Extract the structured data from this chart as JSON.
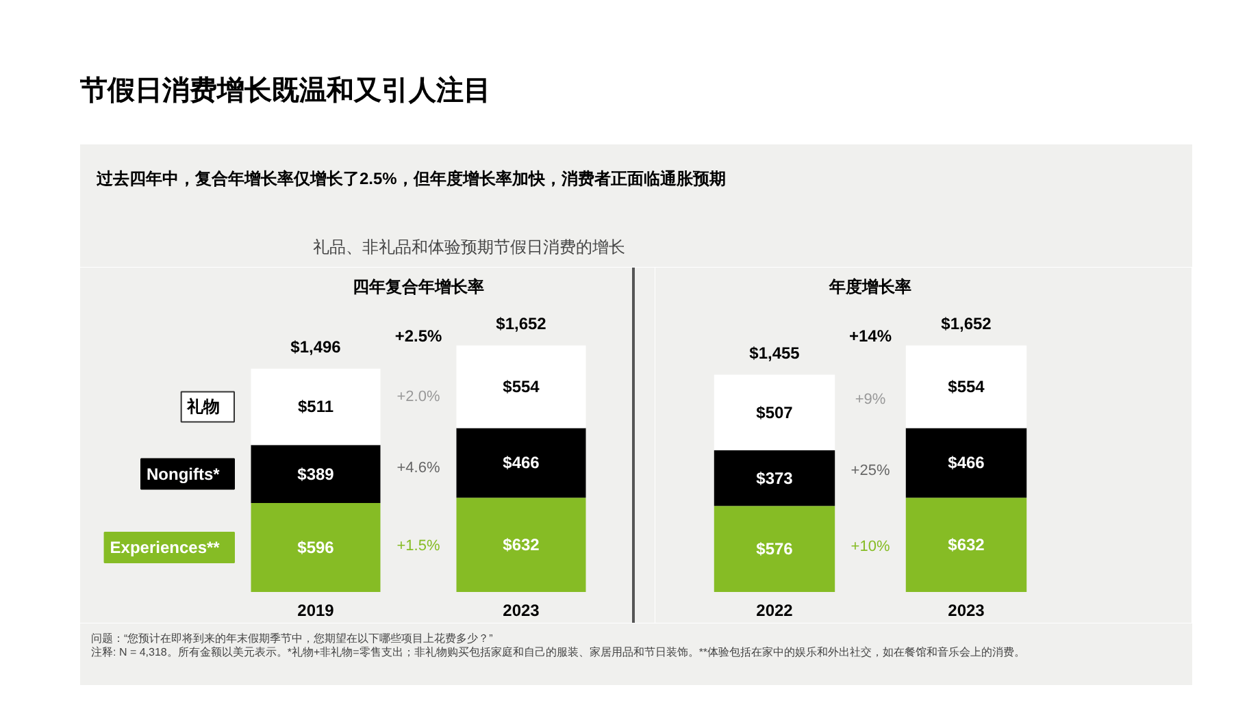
{
  "chart_data": [
    {
      "type": "bar",
      "title": "节假日消费增长既温和又引人注目",
      "subtitle": "过去四年中，复合年增长率仅增长了2.5%，但年度增长率加快，消费者正面临通胀预期",
      "categories": [
        "2019",
        "2023"
      ],
      "stacked": true,
      "legend": "left",
      "series": [
        {
          "name": "Experiences**",
          "color": "#86bc25",
          "values": [
            596,
            632
          ],
          "value_labels": [
            "$596",
            "$632"
          ]
        },
        {
          "name": "Nongifts*",
          "color": "#000000",
          "values": [
            389,
            466
          ],
          "value_labels": [
            "$389",
            "$466"
          ]
        },
        {
          "name": "礼物",
          "color": "#ffffff",
          "values": [
            511,
            554
          ],
          "value_labels": [
            "$511",
            "$554"
          ]
        }
      ],
      "totals": [
        "$1,496",
        "$1,652"
      ],
      "annotations": [
        "礼品、非礼品和体验预期节假日消费的增长",
        "四年复合年增长率",
        "+2.5%",
        "+1.5%",
        "+4.6%",
        "+2.0%"
      ]
    },
    {
      "type": "bar",
      "categories": [
        "2022",
        "2023"
      ],
      "stacked": true,
      "series": [
        {
          "color": "#86bc25",
          "values": [
            576,
            632
          ],
          "value_labels": [
            "$576",
            "$632"
          ]
        },
        {
          "color": "#000000",
          "values": [
            373,
            466
          ],
          "value_labels": [
            "$373",
            "$466"
          ]
        },
        {
          "color": "#ffffff",
          "values": [
            507,
            554
          ],
          "value_labels": [
            "$507",
            "$554"
          ]
        }
      ],
      "totals": [
        "$1,455",
        "$1,652"
      ],
      "annotations": [
        "年度增长率",
        "+14%",
        "+10%",
        "+25%",
        "+9%",
        "问题：“您预计在即将到来的年末假期季节中，您期望在以下哪些项目上花费多少？”",
        "注释: N = 4,318。所有金额以美元表示。*礼物+非礼物=零售支出；非礼物购买包括家庭和自己的服装、家居用品和节日装饰。**体验包括在家中的娱乐和外出社交，如在餐馆和音乐会上的消费。"
      ]
    }
  ]
}
